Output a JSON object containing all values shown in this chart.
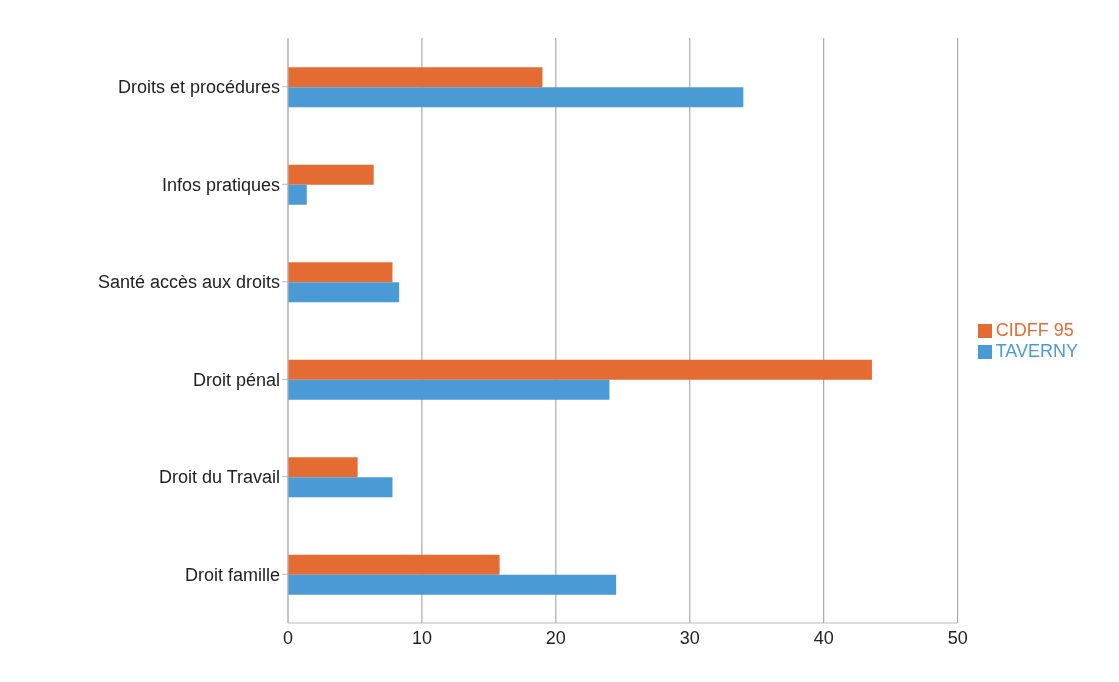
{
  "chart_data": {
    "type": "bar",
    "orientation": "horizontal",
    "categories": [
      "Droits et procédures",
      "Infos pratiques",
      "Santé accès aux droits",
      "Droit pénal",
      "Droit du Travail",
      "Droit famille"
    ],
    "series": [
      {
        "name": "CIDFF 95",
        "color": "#e46c32",
        "values": [
          19,
          6.4,
          7.8,
          43.6,
          5.2,
          15.8
        ]
      },
      {
        "name": "TAVERNY",
        "color": "#4a9ad6",
        "values": [
          34,
          1.4,
          8.3,
          24,
          7.8,
          24.5
        ]
      }
    ],
    "xlim": [
      0,
      50
    ],
    "xticks": [
      0,
      10,
      20,
      30,
      40,
      50
    ],
    "grid": "x",
    "legend": "right"
  }
}
